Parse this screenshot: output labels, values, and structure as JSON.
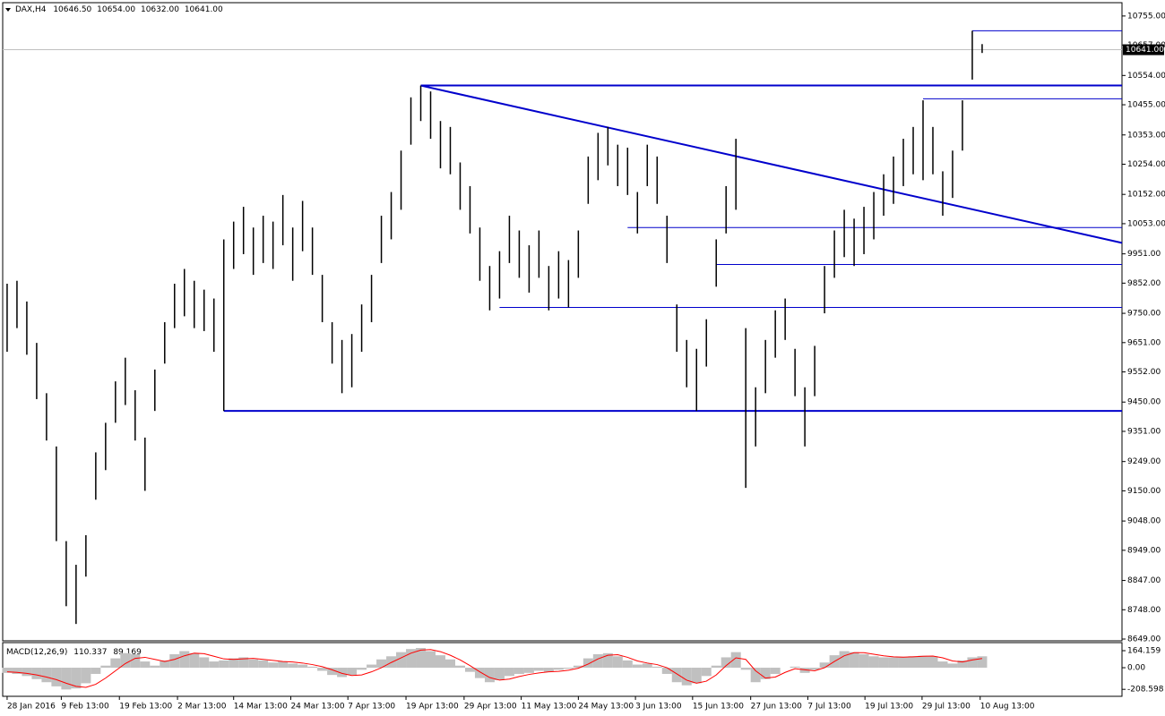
{
  "chart_data": {
    "type": "ohlc",
    "symbol": "DAX,H4",
    "ohlc": [
      {
        "value": 10646.5,
        "label": "10646.50"
      },
      {
        "value": 10654,
        "label": "10654.00"
      },
      {
        "value": 10632,
        "label": "10632.00"
      },
      {
        "value": 10641,
        "label": "10641.00"
      }
    ],
    "bar_color": "#000000",
    "high": [
      9850,
      9860,
      9790,
      9650,
      9480,
      9300,
      8980,
      8900,
      9000,
      9280,
      9380,
      9520,
      9600,
      9490,
      9330,
      9560,
      9720,
      9850,
      9900,
      9860,
      9830,
      9800,
      10000,
      10060,
      10110,
      10040,
      10080,
      10060,
      10150,
      10040,
      10130,
      10040,
      9880,
      9720,
      9660,
      9680,
      9780,
      9880,
      10080,
      10160,
      10300,
      10480,
      10520,
      10500,
      10400,
      10380,
      10260,
      10180,
      10040,
      9910,
      9960,
      10080,
      10030,
      9980,
      10030,
      9910,
      9960,
      9930,
      10030,
      10280,
      10360,
      10380,
      10320,
      10310,
      10160,
      10320,
      10280,
      10080,
      9780,
      9660,
      9630,
      9730,
      10000,
      10180,
      10340,
      9700,
      9500,
      9660,
      9760,
      9800,
      9630,
      9500,
      9640,
      9910,
      10030,
      10100,
      10070,
      10110,
      10160,
      10220,
      10280,
      10340,
      10380,
      10470,
      10380,
      10230,
      10300,
      10470,
      10705,
      10660
    ],
    "low": [
      9620,
      9700,
      9610,
      9460,
      9320,
      8980,
      8760,
      8700,
      8860,
      9120,
      9220,
      9380,
      9440,
      9320,
      9150,
      9420,
      9580,
      9700,
      9740,
      9700,
      9690,
      9620,
      9420,
      9900,
      9950,
      9880,
      9920,
      9900,
      9980,
      9860,
      9960,
      9880,
      9720,
      9580,
      9480,
      9500,
      9620,
      9720,
      9920,
      10000,
      10100,
      10320,
      10400,
      10340,
      10240,
      10220,
      10100,
      10020,
      9860,
      9760,
      9800,
      9920,
      9870,
      9820,
      9870,
      9760,
      9800,
      9770,
      9870,
      10120,
      10200,
      10250,
      10180,
      10150,
      10020,
      10180,
      10120,
      9920,
      9620,
      9500,
      9420,
      9570,
      9840,
      10020,
      10100,
      9160,
      9300,
      9480,
      9600,
      9660,
      9470,
      9300,
      9470,
      9750,
      9870,
      9940,
      9910,
      9950,
      10000,
      10080,
      10120,
      10180,
      10220,
      10200,
      10220,
      10080,
      10140,
      10300,
      10540,
      10630
    ],
    "xlim": [
      -0.45,
      113.2
    ],
    "ylim": [
      8643,
      10800
    ],
    "yticks": [
      {
        "value": 10755,
        "label": "10755.00"
      },
      {
        "value": 10657,
        "label": "10657.00"
      },
      {
        "value": 10554,
        "label": "10554.00"
      },
      {
        "value": 10455,
        "label": "10455.00"
      },
      {
        "value": 10353,
        "label": "10353.00"
      },
      {
        "value": 10254,
        "label": "10254.00"
      },
      {
        "value": 10152,
        "label": "10152.00"
      },
      {
        "value": 10053,
        "label": "10053.00"
      },
      {
        "value": 9951,
        "label": "9951.00"
      },
      {
        "value": 9852,
        "label": "9852.00"
      },
      {
        "value": 9750,
        "label": "9750.00"
      },
      {
        "value": 9651,
        "label": "9651.00"
      },
      {
        "value": 9552,
        "label": "9552.00"
      },
      {
        "value": 9450,
        "label": "9450.00"
      },
      {
        "value": 9351,
        "label": "9351.00"
      },
      {
        "value": 9249,
        "label": "9249.00"
      },
      {
        "value": 9150,
        "label": "9150.00"
      },
      {
        "value": 9048,
        "label": "9048.00"
      },
      {
        "value": 8949,
        "label": "8949.00"
      },
      {
        "value": 8847,
        "label": "8847.00"
      },
      {
        "value": 8748,
        "label": "8748.00"
      },
      {
        "value": 8649,
        "label": "8649.00"
      }
    ],
    "xticks": [
      {
        "value": 0,
        "label": "28 Jan 2016"
      },
      {
        "value": 5.5,
        "label": "9 Feb 13:00"
      },
      {
        "value": 11.4,
        "label": "19 Feb 13:00"
      },
      {
        "value": 17.3,
        "label": "2 Mar 13:00"
      },
      {
        "value": 23,
        "label": "14 Mar 13:00"
      },
      {
        "value": 28.8,
        "label": "24 Mar 13:00"
      },
      {
        "value": 34.6,
        "label": "7 Apr 13:00"
      },
      {
        "value": 40.5,
        "label": "19 Apr 13:00"
      },
      {
        "value": 46.4,
        "label": "29 Apr 13:00"
      },
      {
        "value": 52.2,
        "label": "11 May 13:00"
      },
      {
        "value": 58,
        "label": "24 May 13:00"
      },
      {
        "value": 63.8,
        "label": "3 Jun 13:00"
      },
      {
        "value": 69.6,
        "label": "15 Jun 13:00"
      },
      {
        "value": 75.5,
        "label": "27 Jun 13:00"
      },
      {
        "value": 81.3,
        "label": "7 Jul 13:00"
      },
      {
        "value": 87.1,
        "label": "19 Jul 13:00"
      },
      {
        "value": 92.9,
        "label": "29 Jul 13:00"
      },
      {
        "value": 98.8,
        "label": "10 Aug 13:00"
      }
    ],
    "current_price": {
      "value": 10641,
      "label": "10641.00"
    },
    "level_color": "#0000cc",
    "levels": [
      {
        "value": 10520,
        "start": 42,
        "line_width": 2
      },
      {
        "value": 9420,
        "start": 22,
        "line_width": 2
      },
      {
        "value": 10705,
        "start": 98,
        "line_width": 1
      },
      {
        "value": 10475,
        "start": 93,
        "line_width": 1
      },
      {
        "value": 10040,
        "start": 63,
        "line_width": 1
      },
      {
        "value": 9915,
        "start": 72,
        "line_width": 1
      },
      {
        "value": 9770,
        "start": 50,
        "line_width": 1
      }
    ],
    "trendline": {
      "start": [
        42,
        10520
      ],
      "end": [
        113.2,
        9988
      ],
      "line_width": 2
    },
    "macd": {
      "name": "MACD(12,26,9)",
      "main_value": 110.337,
      "signal_value": 89.169,
      "ylim": [
        -276,
        242
      ],
      "yticks": [
        164.159,
        {
          "value": 0,
          "label": "0.00"
        },
        -208.598
      ],
      "histogram_color": "#c0c0c0",
      "signal_color": "#ff0000",
      "values": [
        -50,
        -60,
        -80,
        -110,
        -140,
        -180,
        -210,
        -200,
        -150,
        -60,
        20,
        90,
        140,
        130,
        60,
        20,
        70,
        130,
        160,
        140,
        100,
        60,
        70,
        90,
        100,
        80,
        70,
        50,
        60,
        40,
        30,
        10,
        -30,
        -70,
        -90,
        -70,
        -20,
        30,
        80,
        110,
        150,
        180,
        190,
        160,
        120,
        80,
        20,
        -40,
        -100,
        -140,
        -120,
        -80,
        -60,
        -50,
        -30,
        -40,
        -20,
        -10,
        20,
        90,
        130,
        140,
        110,
        70,
        30,
        40,
        10,
        -60,
        -140,
        -170,
        -150,
        -80,
        20,
        100,
        150,
        -20,
        -140,
        -110,
        -60,
        0,
        10,
        -50,
        -20,
        50,
        120,
        160,
        150,
        130,
        110,
        100,
        100,
        105,
        110,
        115,
        110,
        60,
        40,
        70,
        100,
        110
      ],
      "signal": [
        -40,
        -45,
        -55,
        -70,
        -90,
        -115,
        -150,
        -180,
        -190,
        -160,
        -100,
        -30,
        40,
        90,
        100,
        80,
        60,
        80,
        115,
        140,
        135,
        110,
        85,
        80,
        85,
        90,
        80,
        70,
        60,
        55,
        45,
        30,
        10,
        -20,
        -55,
        -75,
        -70,
        -40,
        0,
        50,
        95,
        140,
        170,
        175,
        155,
        120,
        75,
        20,
        -40,
        -95,
        -120,
        -110,
        -85,
        -65,
        -50,
        -40,
        -35,
        -25,
        -5,
        35,
        85,
        120,
        125,
        100,
        65,
        45,
        30,
        0,
        -60,
        -120,
        -150,
        -130,
        -70,
        20,
        95,
        80,
        -30,
        -100,
        -90,
        -45,
        -10,
        -20,
        -30,
        0,
        60,
        115,
        145,
        145,
        130,
        115,
        105,
        102,
        105,
        110,
        112,
        95,
        65,
        55,
        75,
        89
      ]
    }
  }
}
